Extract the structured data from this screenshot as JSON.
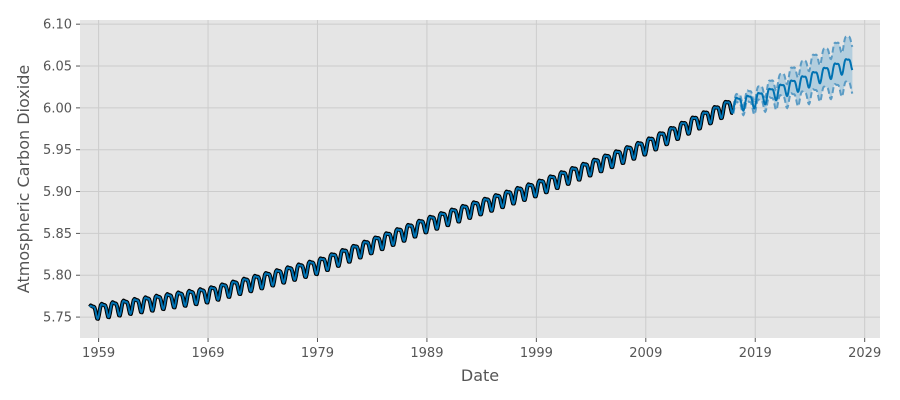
{
  "chart_data": {
    "type": "line",
    "title": "",
    "xlabel": "Date",
    "ylabel": "Atmospheric Carbon Dioxide",
    "xlim": [
      1957.3,
      2030.4
    ],
    "ylim": [
      5.725,
      6.105
    ],
    "x_ticks": [
      1959,
      1969,
      1979,
      1989,
      1999,
      2009,
      2019,
      2029
    ],
    "x_tick_labels": [
      "1959",
      "1969",
      "1979",
      "1989",
      "1999",
      "2009",
      "2019",
      "2029"
    ],
    "y_ticks": [
      5.75,
      5.8,
      5.85,
      5.9,
      5.95,
      6.0,
      6.05,
      6.1
    ],
    "y_tick_labels": [
      "5.75",
      "5.80",
      "5.85",
      "5.90",
      "5.95",
      "6.00",
      "6.05",
      "6.10"
    ],
    "grid": true,
    "legend": "none",
    "observed": {
      "x_start": 1958.2,
      "x_end": 2017.0,
      "trend_anchors": [
        [
          1958.2,
          5.757
        ],
        [
          1969.0,
          5.778
        ],
        [
          1979.0,
          5.812
        ],
        [
          1989.0,
          5.862
        ],
        [
          1999.0,
          5.905
        ],
        [
          2009.0,
          5.955
        ],
        [
          2017.0,
          6.005
        ]
      ],
      "seasonal_amplitude": 0.0078
    },
    "forecast": {
      "x_end": 2027.9,
      "trend_anchors": [
        [
          2017.0,
          6.005
        ],
        [
          2019.0,
          6.01
        ],
        [
          2023.0,
          6.03
        ],
        [
          2027.9,
          6.055
        ]
      ],
      "band_width_anchors": [
        [
          2017.0,
          0.004
        ],
        [
          2020.0,
          0.009
        ],
        [
          2024.0,
          0.02
        ],
        [
          2027.9,
          0.028
        ]
      ]
    },
    "colors": {
      "plot_background": "#e5e5e5",
      "grid": "#cccccc",
      "observed": "#000000",
      "fit": "#0072b2",
      "band": "#a6c8dc",
      "band_edge": "#5b9bc4"
    }
  }
}
